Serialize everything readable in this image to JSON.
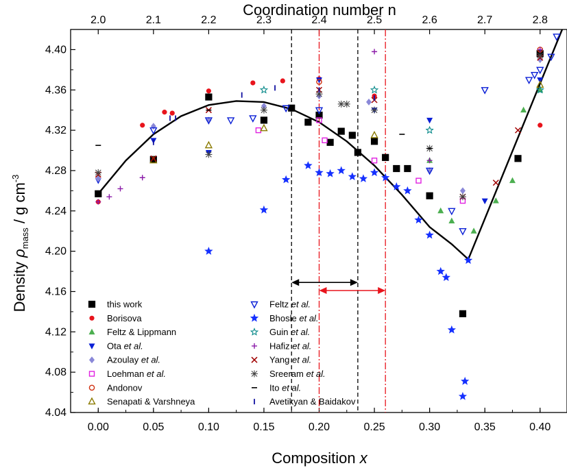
{
  "chart_data": {
    "type": "scatter",
    "xlabel_prefix": "Composition ",
    "xlabel_var": "x",
    "top_axis_label": "Coordination number n",
    "ylabel_prefix": "Density ",
    "ylabel_symbol": "ρ",
    "ylabel_sub": "mass",
    "ylabel_unit": " / g cm",
    "ylabel_exp": "-3",
    "xlim": [
      -0.025,
      0.425
    ],
    "ylim": [
      4.04,
      4.42
    ],
    "x_ticks": [
      "0.00",
      "0.05",
      "0.10",
      "0.15",
      "0.20",
      "0.25",
      "0.30",
      "0.35",
      "0.40"
    ],
    "x_tick_values": [
      0,
      0.05,
      0.1,
      0.15,
      0.2,
      0.25,
      0.3,
      0.35,
      0.4
    ],
    "y_ticks": [
      "4.04",
      "4.08",
      "4.12",
      "4.16",
      "4.20",
      "4.24",
      "4.28",
      "4.32",
      "4.36",
      "4.40"
    ],
    "y_tick_values": [
      4.04,
      4.08,
      4.12,
      4.16,
      4.2,
      4.24,
      4.28,
      4.32,
      4.36,
      4.4
    ],
    "top_ticks": [
      "2.0",
      "2.1",
      "2.2",
      "2.3",
      "2.4",
      "2.5",
      "2.6",
      "2.7",
      "2.8"
    ],
    "top_tick_x": [
      0,
      0.05,
      0.1,
      0.15,
      0.2,
      0.25,
      0.3,
      0.35,
      0.4
    ],
    "fit_curve": {
      "parabola": {
        "x": [
          0,
          0.025,
          0.05,
          0.075,
          0.1,
          0.125,
          0.15,
          0.175,
          0.2,
          0.225,
          0.25,
          0.275,
          0.3,
          0.32,
          0.335
        ],
        "y": [
          4.257,
          4.29,
          4.316,
          4.334,
          4.345,
          4.349,
          4.348,
          4.341,
          4.328,
          4.309,
          4.285,
          4.256,
          4.224,
          4.207,
          4.192
        ]
      },
      "line": {
        "x": [
          0.335,
          0.42
        ],
        "y": [
          4.192,
          4.42
        ]
      }
    },
    "vertical_lines": [
      {
        "x": 0.175,
        "color": "#000000",
        "style": "dashed"
      },
      {
        "x": 0.235,
        "color": "#000000",
        "style": "dashed"
      },
      {
        "x": 0.2,
        "color": "#e8141c",
        "style": "dashdot"
      },
      {
        "x": 0.26,
        "color": "#e8141c",
        "style": "dashdot"
      }
    ],
    "range_arrows": [
      {
        "x1": 0.175,
        "x2": 0.235,
        "y": 4.169,
        "color": "#000000"
      },
      {
        "x1": 0.2,
        "x2": 0.26,
        "y": 4.161,
        "color": "#e8141c"
      }
    ],
    "series": [
      {
        "name": "this work",
        "marker": "square",
        "color": "#000000",
        "points": [
          [
            0,
            4.257
          ],
          [
            0.05,
            4.291
          ],
          [
            0.1,
            4.353
          ],
          [
            0.15,
            4.33
          ],
          [
            0.175,
            4.342
          ],
          [
            0.2,
            4.335
          ],
          [
            0.19,
            4.328
          ],
          [
            0.21,
            4.308
          ],
          [
            0.22,
            4.319
          ],
          [
            0.23,
            4.315
          ],
          [
            0.235,
            4.298
          ],
          [
            0.25,
            4.309
          ],
          [
            0.26,
            4.293
          ],
          [
            0.27,
            4.282
          ],
          [
            0.28,
            4.282
          ],
          [
            0.3,
            4.255
          ],
          [
            0.33,
            4.138
          ],
          [
            0.38,
            4.292
          ],
          [
            0.4,
            4.396
          ]
        ]
      },
      {
        "name": "Borisova",
        "marker": "circle",
        "color": "#e8141c",
        "points": [
          [
            0,
            4.249
          ],
          [
            0.04,
            4.325
          ],
          [
            0.06,
            4.338
          ],
          [
            0.067,
            4.337
          ],
          [
            0.1,
            4.359
          ],
          [
            0.14,
            4.367
          ],
          [
            0.167,
            4.369
          ],
          [
            0.2,
            4.371
          ],
          [
            0.25,
            4.354
          ],
          [
            0.4,
            4.325
          ]
        ]
      },
      {
        "name": "Feltz & Lippmann",
        "marker": "triangle-up",
        "color": "#4caf50",
        "points": [
          [
            0.3,
            4.29
          ],
          [
            0.31,
            4.24
          ],
          [
            0.32,
            4.23
          ],
          [
            0.34,
            4.22
          ],
          [
            0.36,
            4.25
          ],
          [
            0.375,
            4.27
          ],
          [
            0.385,
            4.34
          ],
          [
            0.4,
            4.36
          ]
        ]
      },
      {
        "name": "Ota",
        "name_suffix": " et al.",
        "marker": "triangle-down",
        "color": "#0a1fd6",
        "points": [
          [
            0,
            4.27
          ],
          [
            0.05,
            4.31
          ],
          [
            0.1,
            4.298
          ],
          [
            0.2,
            4.37
          ],
          [
            0.25,
            4.34
          ],
          [
            0.3,
            4.33
          ],
          [
            0.35,
            4.25
          ],
          [
            0.4,
            4.37
          ]
        ]
      },
      {
        "name": "Azoulay",
        "name_suffix": " et al.",
        "marker": "diamond",
        "color": "#8a88d8",
        "points": [
          [
            0,
            4.272
          ],
          [
            0.05,
            4.324
          ],
          [
            0.1,
            4.33
          ],
          [
            0.15,
            4.344
          ],
          [
            0.2,
            4.354
          ],
          [
            0.245,
            4.348
          ],
          [
            0.3,
            4.28
          ],
          [
            0.33,
            4.26
          ],
          [
            0.4,
            4.39
          ]
        ]
      },
      {
        "name": "Loehman",
        "name_suffix": " et al.",
        "marker": "square-open",
        "color": "#e020e0",
        "points": [
          [
            0.145,
            4.32
          ],
          [
            0.2,
            4.33
          ],
          [
            0.205,
            4.31
          ],
          [
            0.25,
            4.29
          ],
          [
            0.29,
            4.27
          ],
          [
            0.33,
            4.25
          ]
        ]
      },
      {
        "name": "Andonov",
        "marker": "circle-open",
        "color": "#d03010",
        "points": [
          [
            0.2,
            4.368
          ],
          [
            0.4,
            4.4
          ]
        ]
      },
      {
        "name": "Senapati & Varshneya",
        "marker": "triangle-open",
        "color": "#8a7a00",
        "points": [
          [
            0.05,
            4.29
          ],
          [
            0.1,
            4.305
          ],
          [
            0.15,
            4.322
          ],
          [
            0.25,
            4.315
          ],
          [
            0.4,
            4.365
          ]
        ]
      },
      {
        "name": "Feltz",
        "name_suffix": " et al.",
        "marker": "triangle-down-open",
        "color": "#0a1fd6",
        "points": [
          [
            0.05,
            4.32
          ],
          [
            0.1,
            4.33
          ],
          [
            0.12,
            4.33
          ],
          [
            0.14,
            4.332
          ],
          [
            0.17,
            4.342
          ],
          [
            0.2,
            4.34
          ],
          [
            0.3,
            4.28
          ],
          [
            0.32,
            4.24
          ],
          [
            0.33,
            4.22
          ],
          [
            0.35,
            4.36
          ],
          [
            0.39,
            4.37
          ],
          [
            0.395,
            4.375
          ],
          [
            0.4,
            4.38
          ],
          [
            0.41,
            4.393
          ],
          [
            0.415,
            4.413
          ]
        ]
      },
      {
        "name": "Bhosle",
        "name_suffix": " et al.",
        "marker": "star",
        "color": "#1530ff",
        "points": [
          [
            0.1,
            4.2
          ],
          [
            0.15,
            4.241
          ],
          [
            0.17,
            4.271
          ],
          [
            0.19,
            4.285
          ],
          [
            0.2,
            4.278
          ],
          [
            0.21,
            4.277
          ],
          [
            0.22,
            4.28
          ],
          [
            0.23,
            4.274
          ],
          [
            0.24,
            4.272
          ],
          [
            0.25,
            4.278
          ],
          [
            0.26,
            4.273
          ],
          [
            0.27,
            4.264
          ],
          [
            0.28,
            4.26
          ],
          [
            0.29,
            4.231
          ],
          [
            0.3,
            4.216
          ],
          [
            0.31,
            4.18
          ],
          [
            0.315,
            4.174
          ],
          [
            0.32,
            4.122
          ],
          [
            0.33,
            4.056
          ],
          [
            0.332,
            4.071
          ],
          [
            0.335,
            4.191
          ]
        ]
      },
      {
        "name": "Guin",
        "name_suffix": " et al.",
        "marker": "star-open",
        "color": "#0a8a8a",
        "points": [
          [
            0.15,
            4.36
          ],
          [
            0.25,
            4.36
          ],
          [
            0.3,
            4.32
          ],
          [
            0.4,
            4.36
          ]
        ]
      },
      {
        "name": "Hafiz",
        "name_suffix": " et al.",
        "marker": "plus",
        "color": "#8a1aa8",
        "points": [
          [
            0,
            4.249
          ],
          [
            0.01,
            4.254
          ],
          [
            0.02,
            4.262
          ],
          [
            0.04,
            4.273
          ],
          [
            0.25,
            4.398
          ],
          [
            0.3,
            4.29
          ],
          [
            0.4,
            4.4
          ]
        ]
      },
      {
        "name": "Yang",
        "name_suffix": " et al.",
        "marker": "x",
        "color": "#a00000",
        "points": [
          [
            0,
            4.276
          ],
          [
            0.05,
            4.292
          ],
          [
            0.1,
            4.34
          ],
          [
            0.2,
            4.36
          ],
          [
            0.25,
            4.35
          ],
          [
            0.33,
            4.254
          ],
          [
            0.36,
            4.268
          ],
          [
            0.38,
            4.32
          ],
          [
            0.4,
            4.392
          ]
        ]
      },
      {
        "name": "Sreeram",
        "name_suffix": " et al.",
        "marker": "asterisk",
        "color": "#444444",
        "points": [
          [
            0,
            4.278
          ],
          [
            0.1,
            4.296
          ],
          [
            0.15,
            4.34
          ],
          [
            0.2,
            4.356
          ],
          [
            0.22,
            4.346
          ],
          [
            0.225,
            4.346
          ],
          [
            0.25,
            4.34
          ],
          [
            0.3,
            4.302
          ],
          [
            0.33,
            4.254
          ],
          [
            0.4,
            4.394
          ]
        ]
      },
      {
        "name": "Ito",
        "name_suffix": " et al.",
        "marker": "hline",
        "color": "#000000",
        "points": [
          [
            0,
            4.305
          ],
          [
            0.1,
            4.34
          ],
          [
            0.275,
            4.316
          ],
          [
            0.3,
            4.302
          ]
        ]
      },
      {
        "name": "Avetikyan & Baidakov",
        "marker": "vline",
        "color": "#1010a0",
        "points": [
          [
            0.05,
            4.308
          ],
          [
            0.065,
            4.332
          ],
          [
            0.07,
            4.332
          ],
          [
            0.13,
            4.355
          ],
          [
            0.16,
            4.362
          ],
          [
            0.2,
            4.36
          ],
          [
            0.25,
            4.352
          ]
        ]
      }
    ]
  }
}
